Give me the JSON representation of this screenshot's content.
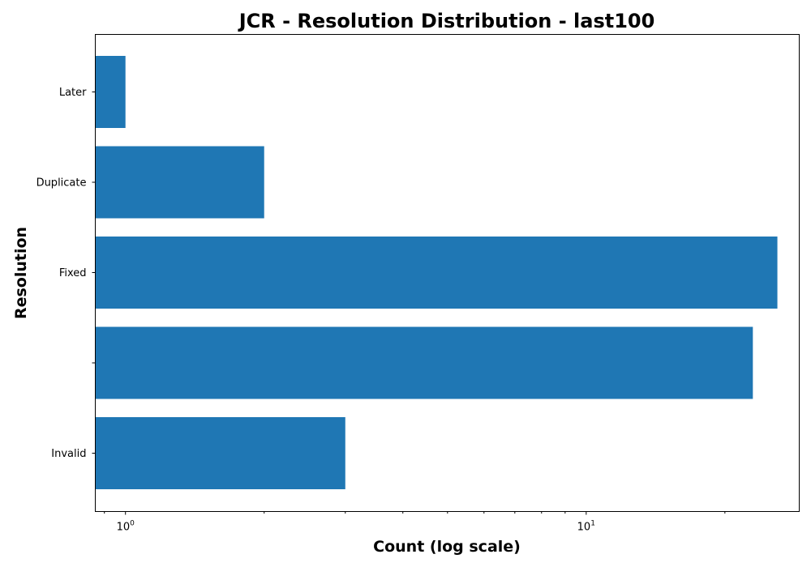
{
  "chart_data": {
    "type": "bar",
    "orientation": "horizontal",
    "title": "JCR - Resolution Distribution - last100",
    "xlabel": "Count (log scale)",
    "ylabel": "Resolution",
    "x_scale": "log",
    "xlim": [
      0.86,
      29
    ],
    "categories": [
      "Invalid",
      "",
      "Fixed",
      "Duplicate",
      "Later"
    ],
    "values": [
      3,
      23,
      26,
      2,
      1
    ],
    "x_ticks": [
      {
        "value": 1,
        "base": "10",
        "exp": "0"
      },
      {
        "value": 10,
        "base": "10",
        "exp": "1"
      }
    ],
    "color": "#1f77b4",
    "grid": false,
    "legend": false
  }
}
